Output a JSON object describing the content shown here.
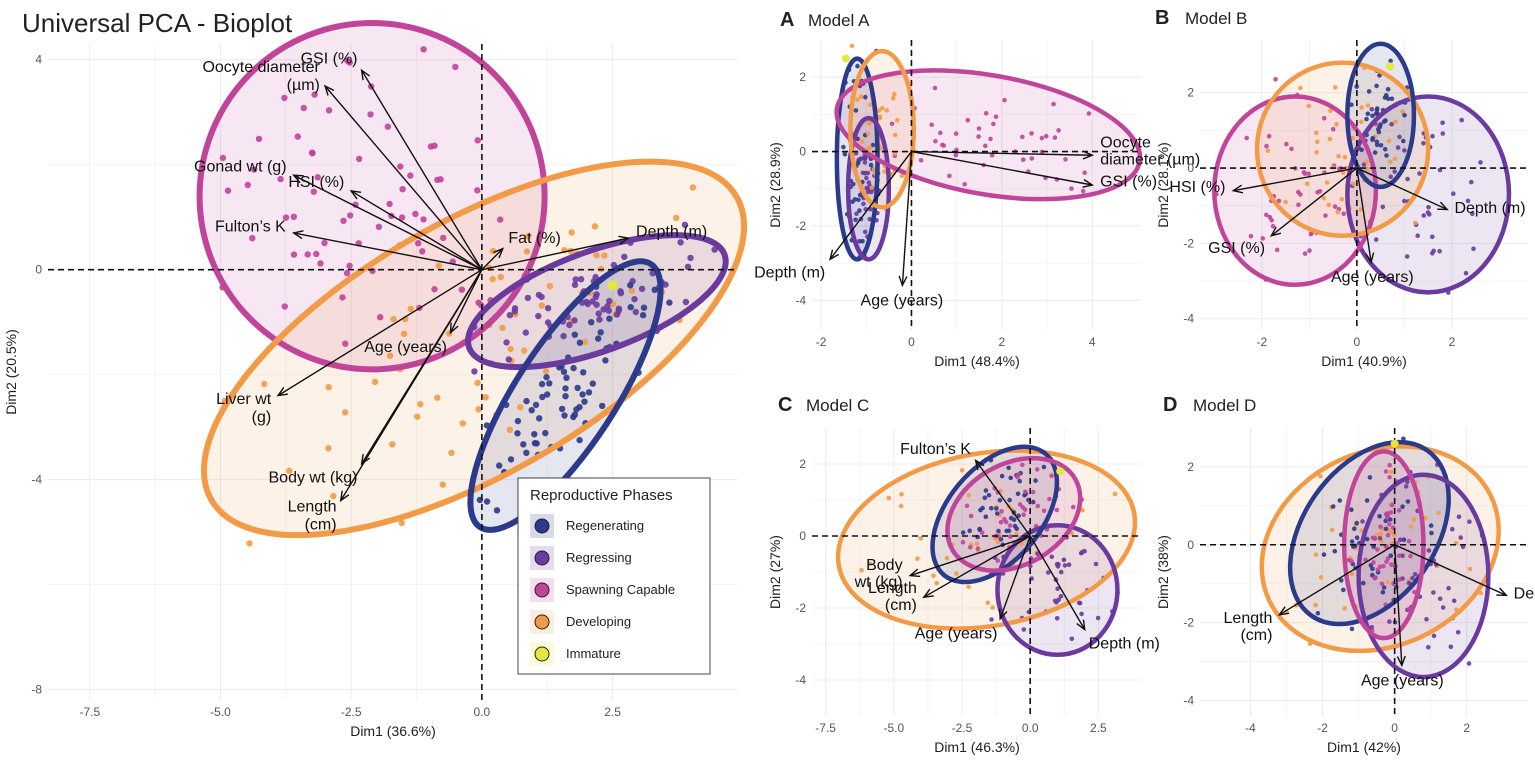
{
  "chart_data": [
    {
      "id": "main",
      "type": "scatter",
      "title": "Universal PCA - Bioplot",
      "panel_letter": "",
      "xlabel": "Dim1 (36.6%)",
      "ylabel": "Dim2 (20.5%)",
      "xlim": [
        -8.3,
        4.9
      ],
      "ylim": [
        -8.2,
        4.3
      ],
      "xticks": [
        -7.5,
        -5.0,
        -2.5,
        0.0,
        2.5
      ],
      "xtick_labels": [
        "-7.5",
        "-5.0",
        "-2.5",
        "0.0",
        "2.5"
      ],
      "yticks": [
        -8,
        -4,
        0,
        4
      ],
      "ytick_labels": [
        "-8",
        "-4",
        "0",
        "4"
      ],
      "ellipses": [
        {
          "phase": "Spawning Capable",
          "cx": -2.1,
          "cy": 1.4,
          "rx": 3.3,
          "ry": 3.3,
          "angle_deg": 0
        },
        {
          "phase": "Developing",
          "cx": -0.15,
          "cy": -1.5,
          "rx": 5.8,
          "ry": 2.4,
          "angle_deg": 30
        },
        {
          "phase": "Regressing",
          "cx": 2.2,
          "cy": -0.6,
          "rx": 2.6,
          "ry": 0.95,
          "angle_deg": 20
        },
        {
          "phase": "Regenerating",
          "cx": 1.6,
          "cy": -2.4,
          "rx": 3.0,
          "ry": 0.95,
          "angle_deg": 57
        }
      ],
      "arrows": [
        {
          "label": "GSI (%)",
          "x": -2.3,
          "y": 3.8
        },
        {
          "label": "Oocyte diameter\n(µm)",
          "x": -3.0,
          "y": 3.5
        },
        {
          "label": "HSI (%)",
          "x": -2.5,
          "y": 1.5
        },
        {
          "label": "Gonad wt (g)",
          "x": -3.6,
          "y": 1.8
        },
        {
          "label": "Fulton’s K",
          "x": -3.6,
          "y": 0.7
        },
        {
          "label": "Fat (%)",
          "x": 0.4,
          "y": 0.4
        },
        {
          "label": "Depth (m)",
          "x": 2.8,
          "y": 0.6
        },
        {
          "label": "Age (years)",
          "x": -0.6,
          "y": -1.2
        },
        {
          "label": "Liver wt\n(g)",
          "x": -3.9,
          "y": -2.4
        },
        {
          "label": "Body wt (kg)",
          "x": -2.3,
          "y": -3.7
        },
        {
          "label": "Length\n(cm)",
          "x": -2.7,
          "y": -4.4
        }
      ],
      "legend": {
        "title": "Reproductive Phases",
        "items": [
          "Regenerating",
          "Regressing",
          "Spawning Capable",
          "Developing",
          "Immature"
        ]
      }
    },
    {
      "id": "A",
      "type": "scatter",
      "title": "Model A",
      "panel_letter": "A",
      "xlabel": "Dim1 (48.4%)",
      "ylabel": "Dim2 (28.9%)",
      "xlim": [
        -2.2,
        5.1
      ],
      "ylim": [
        -4.8,
        3.0
      ],
      "xticks": [
        -2,
        0,
        2,
        4
      ],
      "xtick_labels": [
        "-2",
        "0",
        "2",
        "4"
      ],
      "yticks": [
        -4,
        -2,
        0,
        2
      ],
      "ytick_labels": [
        "-4",
        "-2",
        "0",
        "2"
      ],
      "ellipses": [
        {
          "phase": "Regenerating",
          "cx": -1.2,
          "cy": -0.2,
          "rx": 0.45,
          "ry": 2.7,
          "angle_deg": 0
        },
        {
          "phase": "Regressing",
          "cx": -0.95,
          "cy": -1.0,
          "rx": 0.45,
          "ry": 1.9,
          "angle_deg": 0
        },
        {
          "phase": "Spawning Capable",
          "cx": 1.7,
          "cy": 0.45,
          "rx": 3.4,
          "ry": 1.6,
          "angle_deg": -10
        },
        {
          "phase": "Developing",
          "cx": -0.65,
          "cy": 0.6,
          "rx": 0.7,
          "ry": 2.1,
          "angle_deg": 0
        }
      ],
      "arrows": [
        {
          "label": "Oocyte\ndiameter (µm)",
          "x": 4.0,
          "y": -0.1
        },
        {
          "label": "GSI (%)",
          "x": 4.0,
          "y": -0.9
        },
        {
          "label": "Depth (m)",
          "x": -1.8,
          "y": -2.9
        },
        {
          "label": "Age (years)",
          "x": -0.2,
          "y": -3.6
        }
      ]
    },
    {
      "id": "B",
      "type": "scatter",
      "title": "Model B",
      "panel_letter": "B",
      "xlabel": "Dim1 (40.9%)",
      "ylabel": "Dim2 (28.1%)",
      "xlim": [
        -3.3,
        3.6
      ],
      "ylim": [
        -4.3,
        3.4
      ],
      "xticks": [
        -2,
        0,
        2
      ],
      "xtick_labels": [
        "-2",
        "0",
        "2"
      ],
      "yticks": [
        -4,
        -2,
        0,
        2
      ],
      "ytick_labels": [
        "-4",
        "-2",
        "0",
        "2"
      ],
      "ellipses": [
        {
          "phase": "Regressing",
          "cx": 1.5,
          "cy": -0.7,
          "rx": 1.7,
          "ry": 2.6,
          "angle_deg": 0
        },
        {
          "phase": "Spawning Capable",
          "cx": -1.3,
          "cy": -0.6,
          "rx": 1.7,
          "ry": 2.5,
          "angle_deg": 0
        },
        {
          "phase": "Developing",
          "cx": -0.3,
          "cy": 0.5,
          "rx": 1.8,
          "ry": 2.3,
          "angle_deg": 0
        },
        {
          "phase": "Regenerating",
          "cx": 0.5,
          "cy": 1.4,
          "rx": 0.7,
          "ry": 1.9,
          "angle_deg": 0
        }
      ],
      "arrows": [
        {
          "label": "HSI (%)",
          "x": -2.6,
          "y": -0.6
        },
        {
          "label": "GSI (%)",
          "x": -1.8,
          "y": -1.8
        },
        {
          "label": "Depth (m)",
          "x": 1.9,
          "y": -1.1
        },
        {
          "label": "Age (years)",
          "x": 0.3,
          "y": -2.5
        }
      ]
    },
    {
      "id": "C",
      "type": "scatter",
      "title": "Model C",
      "panel_letter": "C",
      "xlabel": "Dim1 (46.3%)",
      "ylabel": "Dim2 (27%)",
      "xlim": [
        -8.0,
        4.1
      ],
      "ylim": [
        -5.0,
        3.0
      ],
      "xticks": [
        -7.5,
        -5.0,
        -2.5,
        0.0,
        2.5
      ],
      "xtick_labels": [
        "-7.5",
        "-5.0",
        "-2.5",
        "0.0",
        "2.5"
      ],
      "yticks": [
        -4,
        -2,
        0,
        2
      ],
      "ytick_labels": [
        "-4",
        "-2",
        "0",
        "2"
      ],
      "ellipses": [
        {
          "phase": "Developing",
          "cx": -1.6,
          "cy": -0.1,
          "rx": 5.5,
          "ry": 2.4,
          "angle_deg": 10
        },
        {
          "phase": "Regressing",
          "cx": 1.0,
          "cy": -1.5,
          "rx": 2.2,
          "ry": 1.8,
          "angle_deg": 0
        },
        {
          "phase": "Regenerating",
          "cx": -1.3,
          "cy": 0.6,
          "rx": 2.9,
          "ry": 1.3,
          "angle_deg": 50
        },
        {
          "phase": "Spawning Capable",
          "cx": -0.6,
          "cy": 0.6,
          "rx": 2.6,
          "ry": 1.4,
          "angle_deg": 30
        }
      ],
      "arrows": [
        {
          "label": "Fulton’s K",
          "x": -2.0,
          "y": 2.1
        },
        {
          "label": "Body\nwt (kg)",
          "x": -4.4,
          "y": -1.1
        },
        {
          "label": "Length\n(cm)",
          "x": -3.9,
          "y": -1.7
        },
        {
          "label": "Age (years)",
          "x": -1.1,
          "y": -2.3
        },
        {
          "label": "Depth (m)",
          "x": 2.0,
          "y": -2.6
        }
      ]
    },
    {
      "id": "D",
      "type": "scatter",
      "title": "Model D",
      "panel_letter": "D",
      "xlabel": "Dim1 (42%)",
      "ylabel": "Dim2 (38%)",
      "xlim": [
        -5.4,
        3.7
      ],
      "ylim": [
        -4.4,
        3.0
      ],
      "xticks": [
        -4,
        -2,
        0,
        2
      ],
      "xtick_labels": [
        "-4",
        "-2",
        "0",
        "2"
      ],
      "yticks": [
        -4,
        -2,
        0,
        2
      ],
      "ytick_labels": [
        "-4",
        "-2",
        "0",
        "2"
      ],
      "ellipses": [
        {
          "phase": "Developing",
          "cx": -0.4,
          "cy": -0.1,
          "rx": 3.4,
          "ry": 2.5,
          "angle_deg": 25
        },
        {
          "phase": "Regenerating",
          "cx": -0.7,
          "cy": 0.3,
          "rx": 2.8,
          "ry": 1.7,
          "angle_deg": 55
        },
        {
          "phase": "Regressing",
          "cx": 0.8,
          "cy": -0.8,
          "rx": 1.8,
          "ry": 2.6,
          "angle_deg": 0
        },
        {
          "phase": "Spawning Capable",
          "cx": -0.3,
          "cy": 0.0,
          "rx": 1.1,
          "ry": 2.4,
          "angle_deg": 0
        }
      ],
      "arrows": [
        {
          "label": "Length\n(cm)",
          "x": -3.2,
          "y": -1.8
        },
        {
          "label": "Depth (m)",
          "x": 3.1,
          "y": -1.3
        },
        {
          "label": "Age (years)",
          "x": 0.2,
          "y": -3.1
        }
      ]
    }
  ],
  "legend_colors": {
    "Regenerating": "#2b3a8a",
    "Regressing": "#6a3a9e",
    "Spawning Capable": "#c0449a",
    "Developing": "#f29a45",
    "Immature": "#e3e83a"
  }
}
